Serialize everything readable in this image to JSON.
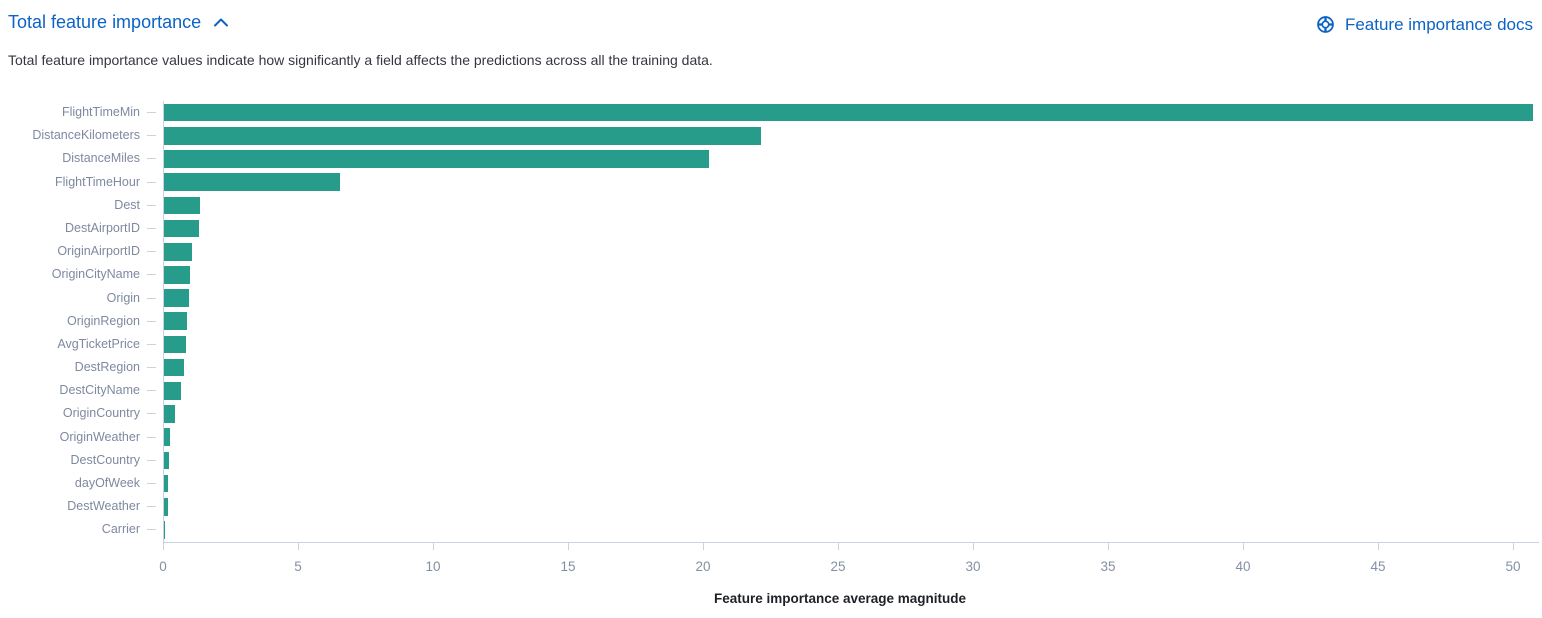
{
  "header": {
    "title": "Total feature importance",
    "collapse_icon": "chevron-up",
    "docs_link_label": "Feature importance docs",
    "docs_icon": "help-lifebuoy",
    "description": "Total feature importance values indicate how significantly a field affects the predictions across all the training data."
  },
  "colors": {
    "link_blue": "#0b63c5",
    "bar_teal": "#279c8b",
    "axis_line": "#c9d2e0",
    "axis_tick_text": "#8390a4",
    "category_label_text": "#7e89a0",
    "description_text": "#343741",
    "axis_title_text": "#1d2025"
  },
  "chart_data": {
    "type": "bar",
    "orientation": "horizontal",
    "title": "",
    "xlabel": "Feature importance average magnitude",
    "ylabel": "",
    "xlim": [
      0,
      50.7
    ],
    "x_ticks": [
      0,
      5,
      10,
      15,
      20,
      25,
      30,
      35,
      40,
      45,
      50
    ],
    "grid": false,
    "legend": false,
    "bar_color": "#279c8b",
    "categories": [
      "FlightTimeMin",
      "DistanceKilometers",
      "DistanceMiles",
      "FlightTimeHour",
      "Dest",
      "DestAirportID",
      "OriginAirportID",
      "OriginCityName",
      "Origin",
      "OriginRegion",
      "AvgTicketPrice",
      "DestRegion",
      "DestCityName",
      "OriginCountry",
      "OriginWeather",
      "DestCountry",
      "dayOfWeek",
      "DestWeather",
      "Carrier"
    ],
    "values": [
      50.7,
      22.1,
      20.2,
      6.5,
      1.35,
      1.3,
      1.05,
      0.95,
      0.93,
      0.87,
      0.83,
      0.73,
      0.63,
      0.42,
      0.21,
      0.19,
      0.16,
      0.13,
      0.04
    ]
  }
}
